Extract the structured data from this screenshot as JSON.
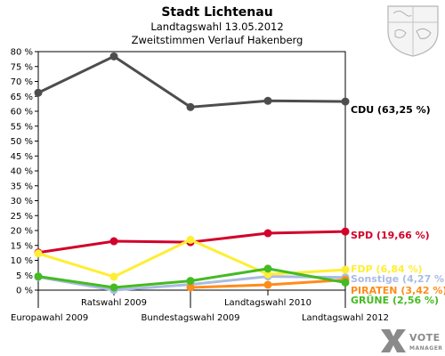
{
  "chart_data": {
    "type": "line",
    "title": "Stadt Lichtenau",
    "subtitle1": "Landtagswahl 13.05.2012",
    "subtitle2": "Zweitstimmen Verlauf Hakenberg",
    "categories": [
      "Europawahl 2009",
      "Ratswahl 2009",
      "Bundestagswahl 2009",
      "Landtagswahl 2010",
      "Landtagswahl 2012"
    ],
    "ylim": [
      0,
      80
    ],
    "yticks": [
      "0 %",
      "5 %",
      "10 %",
      "15 %",
      "20 %",
      "25 %",
      "30 %",
      "35 %",
      "40 %",
      "45 %",
      "50 %",
      "55 %",
      "60 %",
      "65 %",
      "70 %",
      "75 %",
      "80 %"
    ],
    "series": [
      {
        "name": "CDU",
        "end_label": "CDU (63,25 %)",
        "color": "#4d4d4d",
        "label_color": "#000000",
        "values": [
          66.2,
          78.4,
          61.4,
          63.5,
          63.25
        ]
      },
      {
        "name": "SPD",
        "end_label": "SPD (19,66 %)",
        "color": "#d2002a",
        "label_color": "#d2002a",
        "values": [
          12.6,
          16.4,
          16.1,
          19.1,
          19.66
        ]
      },
      {
        "name": "Sonstige",
        "end_label": "Sonstige (4,27 %)",
        "color": "#aabbe3",
        "label_color": "#aabbe3",
        "values": [
          4.4,
          0.0,
          1.9,
          4.6,
          4.27
        ]
      },
      {
        "name": "PIRATEN",
        "end_label": "PIRATEN (3,42 %)",
        "color": "#ff8c1a",
        "label_color": "#ff8c1a",
        "values": [
          null,
          null,
          0.9,
          1.8,
          3.42
        ]
      },
      {
        "name": "FDP",
        "end_label": "FDP (6,84 %)",
        "color": "#ffee33",
        "label_color": "#ffee33",
        "values": [
          12.3,
          4.5,
          16.9,
          5.3,
          6.84
        ]
      },
      {
        "name": "GRÜNE",
        "end_label": "GRÜNE (2,56 %)",
        "color": "#44bb22",
        "label_color": "#44bb22",
        "values": [
          4.6,
          0.9,
          3.1,
          7.2,
          2.56
        ]
      }
    ]
  },
  "logo": {
    "main": "VOTE",
    "sub": "MANAGER"
  },
  "crest": {
    "icon": "coat-of-arms-icon"
  }
}
